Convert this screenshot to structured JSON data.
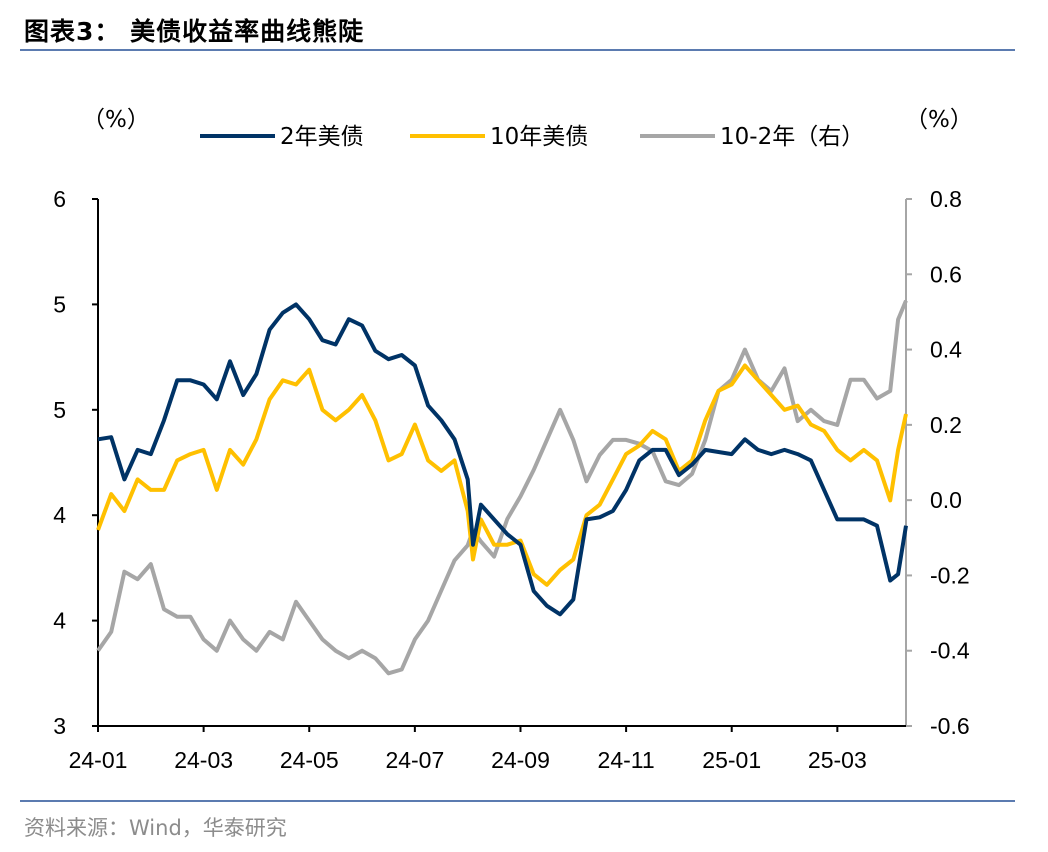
{
  "title": "图表3：  美债收益率曲线熊陡",
  "source": "资料来源：Wind，华泰研究",
  "chart_data": {
    "type": "line",
    "title": "美债收益率曲线熊陡",
    "left_unit": "（%）",
    "right_unit": "（%）",
    "x_unit": "months since 2024-01",
    "x_ticks": [
      {
        "at": 0,
        "label": "24-01"
      },
      {
        "at": 2,
        "label": "24-03"
      },
      {
        "at": 4,
        "label": "24-05"
      },
      {
        "at": 6,
        "label": "24-07"
      },
      {
        "at": 8,
        "label": "24-09"
      },
      {
        "at": 10,
        "label": "24-11"
      },
      {
        "at": 12,
        "label": "25-01"
      },
      {
        "at": 14,
        "label": "25-03"
      }
    ],
    "xlim": [
      0,
      15.3
    ],
    "left_axis": {
      "ylim": [
        3,
        5.5
      ],
      "ticks": [
        {
          "at": 5.5,
          "label": "6"
        },
        {
          "at": 5.0,
          "label": "5"
        },
        {
          "at": 4.5,
          "label": "5"
        },
        {
          "at": 4.0,
          "label": "4"
        },
        {
          "at": 3.5,
          "label": "4"
        },
        {
          "at": 3.0,
          "label": "3"
        }
      ]
    },
    "right_axis": {
      "ylim": [
        -0.6,
        0.8
      ],
      "ticks": [
        {
          "at": 0.8,
          "label": "0.8"
        },
        {
          "at": 0.6,
          "label": "0.6"
        },
        {
          "at": 0.4,
          "label": "0.4"
        },
        {
          "at": 0.2,
          "label": "0.2"
        },
        {
          "at": 0.0,
          "label": "0.0"
        },
        {
          "at": -0.2,
          "label": "-0.2"
        },
        {
          "at": -0.4,
          "label": "-0.4"
        },
        {
          "at": -0.6,
          "label": "-0.6"
        }
      ]
    },
    "legend_position": "top",
    "x": [
      0,
      0.25,
      0.5,
      0.75,
      1,
      1.25,
      1.5,
      1.75,
      2,
      2.25,
      2.5,
      2.75,
      3,
      3.25,
      3.5,
      3.75,
      4,
      4.25,
      4.5,
      4.75,
      5,
      5.25,
      5.5,
      5.75,
      6,
      6.25,
      6.5,
      6.75,
      7,
      7.1,
      7.25,
      7.5,
      7.75,
      8,
      8.25,
      8.5,
      8.75,
      9,
      9.25,
      9.5,
      9.75,
      10,
      10.25,
      10.5,
      10.75,
      11,
      11.25,
      11.5,
      11.75,
      12,
      12.25,
      12.5,
      12.75,
      13,
      13.25,
      13.5,
      13.75,
      14,
      14.25,
      14.5,
      14.75,
      15,
      15.15,
      15.3
    ],
    "series": [
      {
        "name": "2年美债",
        "axis": "left",
        "color": "#003366",
        "values": [
          4.36,
          4.37,
          4.17,
          4.31,
          4.29,
          4.45,
          4.64,
          4.64,
          4.62,
          4.55,
          4.73,
          4.57,
          4.67,
          4.88,
          4.96,
          5.0,
          4.93,
          4.83,
          4.81,
          4.93,
          4.9,
          4.78,
          4.74,
          4.76,
          4.71,
          4.52,
          4.45,
          4.36,
          4.17,
          3.86,
          4.05,
          3.98,
          3.91,
          3.86,
          3.64,
          3.57,
          3.53,
          3.6,
          3.98,
          3.99,
          4.02,
          4.12,
          4.26,
          4.31,
          4.31,
          4.19,
          4.24,
          4.31,
          4.3,
          4.29,
          4.36,
          4.31,
          4.29,
          4.31,
          4.29,
          4.26,
          4.12,
          3.98,
          3.98,
          3.98,
          3.95,
          3.69,
          3.72,
          3.95
        ]
      },
      {
        "name": "10年美债",
        "axis": "left",
        "color": "#FFC000",
        "values": [
          3.93,
          4.1,
          4.02,
          4.17,
          4.12,
          4.12,
          4.26,
          4.29,
          4.31,
          4.12,
          4.31,
          4.24,
          4.36,
          4.55,
          4.64,
          4.62,
          4.69,
          4.5,
          4.45,
          4.5,
          4.57,
          4.45,
          4.26,
          4.29,
          4.43,
          4.26,
          4.21,
          4.26,
          4.02,
          3.79,
          3.98,
          3.86,
          3.86,
          3.88,
          3.72,
          3.67,
          3.74,
          3.79,
          4.0,
          4.05,
          4.17,
          4.29,
          4.33,
          4.4,
          4.36,
          4.21,
          4.26,
          4.45,
          4.59,
          4.62,
          4.71,
          4.64,
          4.57,
          4.5,
          4.52,
          4.43,
          4.4,
          4.31,
          4.26,
          4.31,
          4.26,
          4.07,
          4.31,
          4.48
        ]
      },
      {
        "name": "10-2年（右）",
        "axis": "right",
        "color": "#A6A6A6",
        "values": [
          -0.4,
          -0.35,
          -0.19,
          -0.21,
          -0.17,
          -0.29,
          -0.31,
          -0.31,
          -0.37,
          -0.4,
          -0.32,
          -0.37,
          -0.4,
          -0.35,
          -0.37,
          -0.27,
          -0.32,
          -0.37,
          -0.4,
          -0.42,
          -0.4,
          -0.42,
          -0.46,
          -0.45,
          -0.37,
          -0.32,
          -0.24,
          -0.16,
          -0.12,
          -0.08,
          -0.11,
          -0.15,
          -0.05,
          0.01,
          0.08,
          0.16,
          0.24,
          0.16,
          0.05,
          0.12,
          0.16,
          0.16,
          0.15,
          0.13,
          0.05,
          0.04,
          0.07,
          0.16,
          0.29,
          0.32,
          0.4,
          0.32,
          0.29,
          0.35,
          0.21,
          0.24,
          0.21,
          0.2,
          0.32,
          0.32,
          0.27,
          0.29,
          0.48,
          0.53
        ]
      }
    ]
  }
}
